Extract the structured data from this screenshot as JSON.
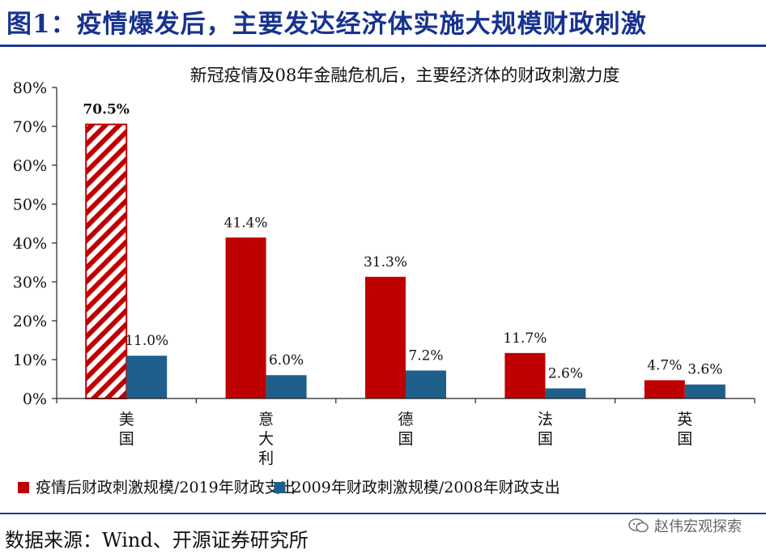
{
  "figure_title": "图1：疫情爆发后，主要发达经济体实施大规模财政刺激",
  "source": "数据来源：Wind、开源证券研究所",
  "watermark": "赵伟宏观探索",
  "colors": {
    "red": "#c00000",
    "blue": "#1f5f8b",
    "title": "#17328f",
    "highlight_label": "#d0101e"
  },
  "chart_data": {
    "type": "bar",
    "title": "新冠疫情及08年金融危机后，主要经济体的财政刺激力度",
    "categories": [
      "美国",
      "意大利",
      "德国",
      "法国",
      "英国"
    ],
    "series": [
      {
        "name": "疫情后财政刺激规模/2019年财政支出",
        "values": [
          70.5,
          41.4,
          31.3,
          11.7,
          4.7
        ],
        "labels": [
          "70.5%",
          "41.4%",
          "31.3%",
          "11.7%",
          "4.7%"
        ]
      },
      {
        "name": "2009年财政刺激规模/2008年财政支出",
        "values": [
          11.0,
          6.0,
          7.2,
          2.6,
          3.6
        ],
        "labels": [
          "11.0%",
          "6.0%",
          "7.2%",
          "2.6%",
          "3.6%"
        ]
      }
    ],
    "highlight": {
      "series": 0,
      "index": 0,
      "style": "hatched"
    },
    "ylim": [
      0,
      80
    ],
    "yticks": [
      "0%",
      "10%",
      "20%",
      "30%",
      "40%",
      "50%",
      "60%",
      "70%",
      "80%"
    ],
    "xlabel": "",
    "ylabel": "",
    "grid": false,
    "legend_position": "bottom"
  }
}
